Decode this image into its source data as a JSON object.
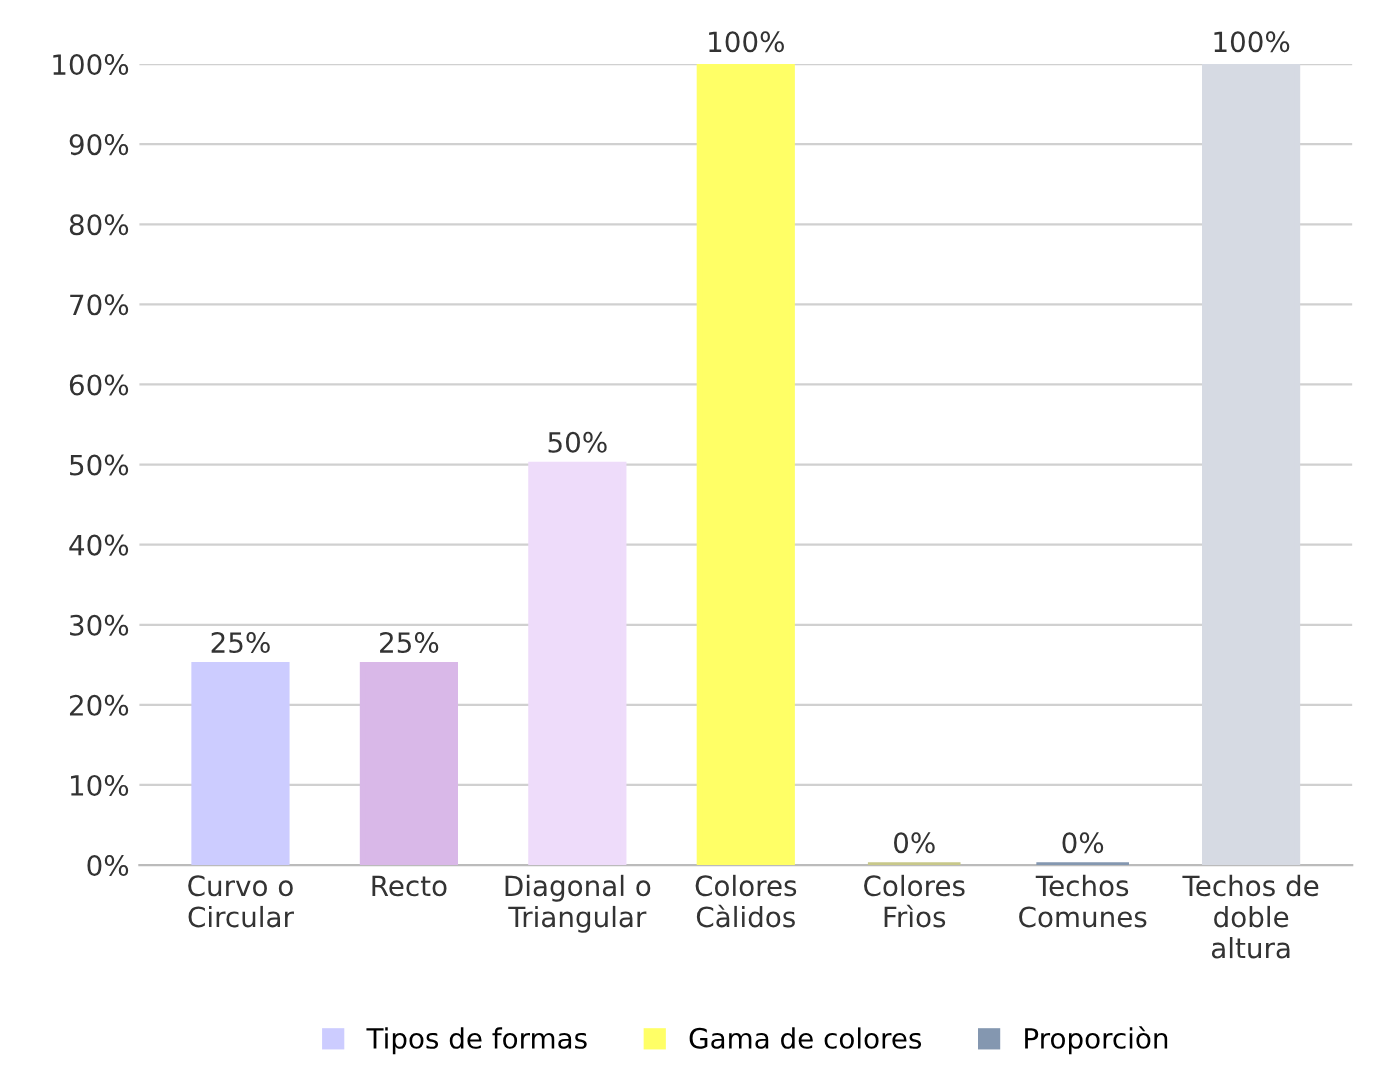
{
  "chart_data": {
    "type": "bar",
    "categories": [
      "Curvo o\nCircular",
      "Recto",
      "Diagonal o\nTriangular",
      "Colores\nCàlidos",
      "Colores\nFrìos",
      "Techos\nComunes",
      "Techos de\ndoble\naltura"
    ],
    "series": [
      {
        "name": "Tipos de formas",
        "color": "#ccccff",
        "colors": [
          "#ccccff",
          "#d9b8e8",
          "#eedcfa",
          null,
          null,
          null,
          null
        ],
        "values": [
          25,
          25,
          50,
          null,
          null,
          null,
          null
        ],
        "value_labels": [
          "25%",
          "25%",
          "50%",
          null,
          null,
          null,
          null
        ]
      },
      {
        "name": "Gama de colores",
        "color": "#ffff66",
        "colors": [
          null,
          null,
          null,
          "#ffff66",
          "#c8c88a",
          null,
          null
        ],
        "values": [
          null,
          null,
          null,
          100,
          0,
          null,
          null
        ],
        "value_labels": [
          null,
          null,
          null,
          "100%",
          "0%",
          null,
          null
        ]
      },
      {
        "name": "Proporciòn",
        "color": "#8497b0",
        "colors": [
          null,
          null,
          null,
          null,
          null,
          "#8497b0",
          "#d6dae3"
        ],
        "values": [
          null,
          null,
          null,
          null,
          null,
          0,
          100
        ],
        "value_labels": [
          null,
          null,
          null,
          null,
          null,
          "0%",
          "100%"
        ]
      }
    ],
    "ylim": [
      0,
      100
    ],
    "yticks": [
      {
        "value": 0,
        "label": "0%"
      },
      {
        "value": 10,
        "label": "10%"
      },
      {
        "value": 20,
        "label": "20%"
      },
      {
        "value": 30,
        "label": "30%"
      },
      {
        "value": 40,
        "label": "40%"
      },
      {
        "value": 50,
        "label": "50%"
      },
      {
        "value": 60,
        "label": "60%"
      },
      {
        "value": 70,
        "label": "70%"
      },
      {
        "value": 80,
        "label": "80%"
      },
      {
        "value": 90,
        "label": "90%"
      },
      {
        "value": 100,
        "label": "100%"
      }
    ],
    "grid": "y",
    "legend": "bottom"
  }
}
